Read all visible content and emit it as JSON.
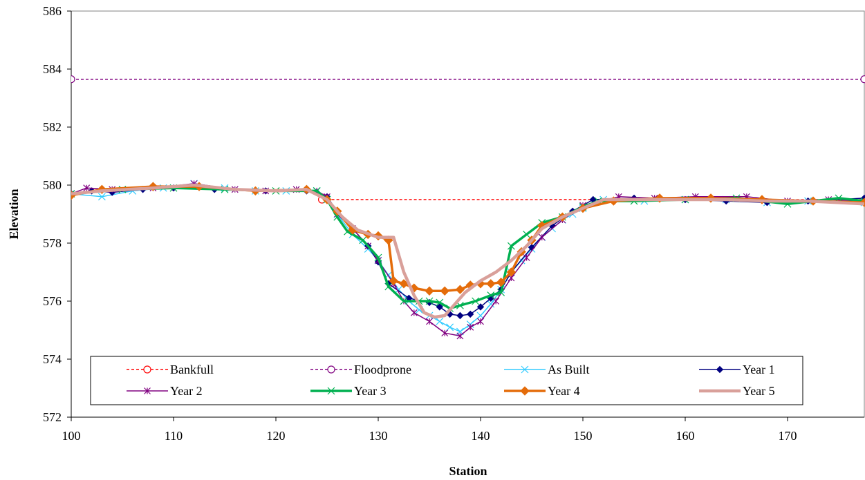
{
  "chart_data": {
    "type": "line",
    "title": "",
    "xlabel": "Station",
    "ylabel": "Elevation",
    "xlim": [
      100,
      177.5
    ],
    "ylim": [
      572,
      586
    ],
    "xticks": [
      "100",
      "110",
      "120",
      "130",
      "140",
      "150",
      "160",
      "170"
    ],
    "yticks": [
      "572",
      "574",
      "576",
      "578",
      "580",
      "582",
      "584",
      "586"
    ],
    "grid": false,
    "legend_position": "bottom-inside",
    "series": [
      {
        "name": "Bankfull",
        "color": "#ff0000",
        "dash": "dashed",
        "marker": "open-circle",
        "points": [
          [
            124.5,
            579.5
          ],
          [
            177.5,
            579.5
          ]
        ]
      },
      {
        "name": "Floodprone",
        "color": "#800080",
        "dash": "dashed",
        "marker": "open-circle",
        "points": [
          [
            100,
            583.65
          ],
          [
            177.5,
            583.65
          ]
        ]
      },
      {
        "name": "As Built",
        "color": "#33ccff",
        "dash": "solid",
        "marker": "x",
        "points": [
          [
            100,
            579.7
          ],
          [
            103,
            579.6
          ],
          [
            106,
            579.8
          ],
          [
            109,
            579.9
          ],
          [
            112,
            580.05
          ],
          [
            115,
            579.9
          ],
          [
            118,
            579.8
          ],
          [
            121,
            579.8
          ],
          [
            124,
            579.8
          ],
          [
            125,
            579.5
          ],
          [
            126,
            579.0
          ],
          [
            127.5,
            578.3
          ],
          [
            129,
            577.8
          ],
          [
            130,
            577.4
          ],
          [
            131,
            576.9
          ],
          [
            132,
            576.4
          ],
          [
            133,
            576.0
          ],
          [
            134,
            575.7
          ],
          [
            135,
            575.5
          ],
          [
            136,
            575.3
          ],
          [
            137,
            575.1
          ],
          [
            138,
            574.95
          ],
          [
            139,
            575.2
          ],
          [
            140,
            575.5
          ],
          [
            141,
            575.9
          ],
          [
            142,
            576.4
          ],
          [
            143,
            577.0
          ],
          [
            144,
            577.4
          ],
          [
            145,
            577.8
          ],
          [
            146,
            578.2
          ],
          [
            147,
            578.5
          ],
          [
            148,
            578.8
          ],
          [
            149,
            579.0
          ],
          [
            150,
            579.2
          ],
          [
            152,
            579.5
          ],
          [
            156,
            579.45
          ],
          [
            160,
            579.5
          ],
          [
            164,
            579.5
          ],
          [
            168,
            579.4
          ],
          [
            172,
            579.45
          ],
          [
            177.5,
            579.4
          ]
        ]
      },
      {
        "name": "Year 1",
        "color": "#000080",
        "dash": "solid",
        "marker": "diamond",
        "points": [
          [
            100,
            579.7
          ],
          [
            102,
            579.8
          ],
          [
            104,
            579.75
          ],
          [
            107,
            579.85
          ],
          [
            110,
            579.9
          ],
          [
            114,
            579.85
          ],
          [
            119,
            579.8
          ],
          [
            123,
            579.8
          ],
          [
            124,
            579.75
          ],
          [
            125,
            579.6
          ],
          [
            126,
            579.1
          ],
          [
            127.5,
            578.5
          ],
          [
            129,
            577.9
          ],
          [
            130,
            577.35
          ],
          [
            131,
            576.6
          ],
          [
            133,
            576.1
          ],
          [
            135,
            575.95
          ],
          [
            136,
            575.8
          ],
          [
            137,
            575.55
          ],
          [
            138,
            575.5
          ],
          [
            139,
            575.55
          ],
          [
            140,
            575.8
          ],
          [
            141,
            576.1
          ],
          [
            142,
            576.4
          ],
          [
            143,
            577.0
          ],
          [
            145,
            577.85
          ],
          [
            147,
            578.6
          ],
          [
            149,
            579.1
          ],
          [
            151,
            579.5
          ],
          [
            155,
            579.55
          ],
          [
            160,
            579.5
          ],
          [
            164,
            579.45
          ],
          [
            168,
            579.4
          ],
          [
            172,
            579.45
          ],
          [
            177.5,
            579.55
          ]
        ]
      },
      {
        "name": "Year 2",
        "color": "#800080",
        "dash": "solid",
        "marker": "star",
        "points": [
          [
            100,
            579.7
          ],
          [
            101.5,
            579.9
          ],
          [
            104,
            579.85
          ],
          [
            108,
            579.9
          ],
          [
            112,
            580.05
          ],
          [
            116,
            579.85
          ],
          [
            119,
            579.8
          ],
          [
            122,
            579.85
          ],
          [
            124,
            579.8
          ],
          [
            125,
            579.6
          ],
          [
            126,
            579.0
          ],
          [
            127.5,
            578.5
          ],
          [
            129,
            577.9
          ],
          [
            130,
            577.4
          ],
          [
            131.5,
            576.6
          ],
          [
            132.5,
            576.0
          ],
          [
            133.5,
            575.6
          ],
          [
            135,
            575.3
          ],
          [
            136.5,
            574.9
          ],
          [
            138,
            574.8
          ],
          [
            139,
            575.1
          ],
          [
            140,
            575.3
          ],
          [
            141.5,
            576.0
          ],
          [
            143,
            576.8
          ],
          [
            144.5,
            577.5
          ],
          [
            146,
            578.2
          ],
          [
            148,
            578.8
          ],
          [
            150,
            579.3
          ],
          [
            153.5,
            579.6
          ],
          [
            157,
            579.55
          ],
          [
            161,
            579.6
          ],
          [
            166,
            579.6
          ],
          [
            170,
            579.45
          ],
          [
            174,
            579.5
          ],
          [
            177.5,
            579.45
          ]
        ]
      },
      {
        "name": "Year 3",
        "color": "#00b050",
        "dash": "solid",
        "marker": "x",
        "points": [
          [
            100,
            579.7
          ],
          [
            105,
            579.85
          ],
          [
            110,
            579.9
          ],
          [
            115,
            579.85
          ],
          [
            120,
            579.8
          ],
          [
            124,
            579.8
          ],
          [
            125,
            579.5
          ],
          [
            126,
            578.9
          ],
          [
            127,
            578.4
          ],
          [
            128.5,
            578.1
          ],
          [
            130,
            577.5
          ],
          [
            131,
            576.5
          ],
          [
            132.5,
            576.0
          ],
          [
            134,
            576.0
          ],
          [
            135,
            576.0
          ],
          [
            136,
            575.95
          ],
          [
            137,
            575.75
          ],
          [
            138,
            575.85
          ],
          [
            139.5,
            576.0
          ],
          [
            141,
            576.2
          ],
          [
            142,
            576.3
          ],
          [
            143,
            577.9
          ],
          [
            144.5,
            578.3
          ],
          [
            146,
            578.7
          ],
          [
            148,
            578.9
          ],
          [
            150,
            579.25
          ],
          [
            151.5,
            579.45
          ],
          [
            155,
            579.45
          ],
          [
            160,
            579.5
          ],
          [
            165,
            579.55
          ],
          [
            170,
            579.35
          ],
          [
            175,
            579.55
          ],
          [
            177.5,
            579.45
          ]
        ]
      },
      {
        "name": "Year 4",
        "color": "#e46c0a",
        "dash": "solid",
        "marker": "diamond",
        "points": [
          [
            100,
            579.65
          ],
          [
            103,
            579.85
          ],
          [
            108,
            579.95
          ],
          [
            112.5,
            579.95
          ],
          [
            118,
            579.8
          ],
          [
            123,
            579.85
          ],
          [
            125,
            579.5
          ],
          [
            126,
            579.1
          ],
          [
            127.5,
            578.45
          ],
          [
            129,
            578.3
          ],
          [
            130,
            578.25
          ],
          [
            131,
            578.1
          ],
          [
            131.5,
            576.7
          ],
          [
            132.5,
            576.6
          ],
          [
            133.5,
            576.45
          ],
          [
            135,
            576.35
          ],
          [
            136.5,
            576.35
          ],
          [
            138,
            576.4
          ],
          [
            139,
            576.55
          ],
          [
            140,
            576.6
          ],
          [
            141,
            576.6
          ],
          [
            142,
            576.65
          ],
          [
            143,
            577.0
          ],
          [
            144,
            577.7
          ],
          [
            145,
            578.1
          ],
          [
            146,
            578.6
          ],
          [
            148,
            578.9
          ],
          [
            150,
            579.2
          ],
          [
            153,
            579.45
          ],
          [
            157.5,
            579.55
          ],
          [
            162.5,
            579.55
          ],
          [
            167.5,
            579.5
          ],
          [
            172.5,
            579.45
          ],
          [
            177.5,
            579.4
          ]
        ]
      },
      {
        "name": "Year 5",
        "color": "#d9a09a",
        "dash": "solid",
        "marker": "none",
        "points": [
          [
            100,
            579.7
          ],
          [
            103,
            579.8
          ],
          [
            108,
            579.9
          ],
          [
            112,
            580.0
          ],
          [
            116,
            579.85
          ],
          [
            120,
            579.8
          ],
          [
            123,
            579.85
          ],
          [
            125,
            579.5
          ],
          [
            126.5,
            578.9
          ],
          [
            128,
            578.45
          ],
          [
            130,
            578.2
          ],
          [
            131.5,
            578.2
          ],
          [
            132.5,
            577.0
          ],
          [
            133.5,
            576.2
          ],
          [
            134.5,
            575.6
          ],
          [
            135.5,
            575.45
          ],
          [
            136.5,
            575.5
          ],
          [
            137.5,
            575.9
          ],
          [
            138.5,
            576.3
          ],
          [
            140,
            576.7
          ],
          [
            141.5,
            577.0
          ],
          [
            143,
            577.4
          ],
          [
            144.5,
            577.9
          ],
          [
            146,
            578.5
          ],
          [
            148,
            578.9
          ],
          [
            150,
            579.2
          ],
          [
            152,
            579.5
          ],
          [
            156,
            579.5
          ],
          [
            160,
            579.5
          ],
          [
            164,
            579.5
          ],
          [
            168,
            579.45
          ],
          [
            172,
            579.45
          ],
          [
            177.5,
            579.35
          ]
        ]
      }
    ]
  }
}
